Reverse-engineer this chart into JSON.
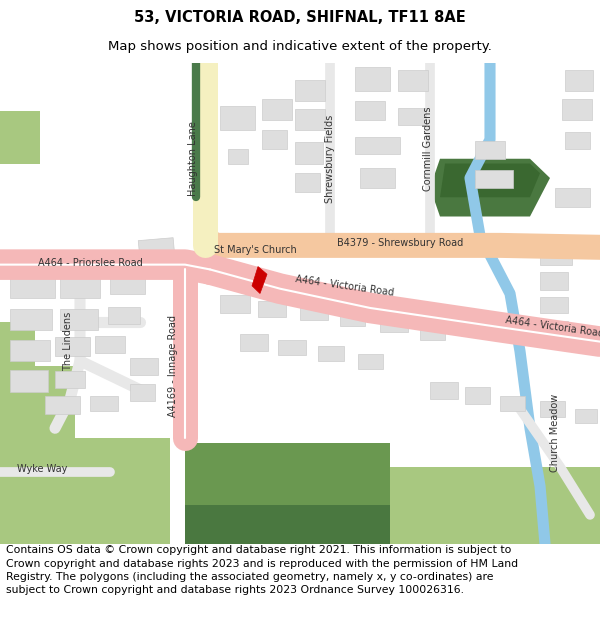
{
  "title_line1": "53, VICTORIA ROAD, SHIFNAL, TF11 8AE",
  "title_line2": "Map shows position and indicative extent of the property.",
  "footer_text": "Contains OS data © Crown copyright and database right 2021. This information is subject to Crown copyright and database rights 2023 and is reproduced with the permission of HM Land Registry. The polygons (including the associated geometry, namely x, y co-ordinates) are subject to Crown copyright and database rights 2023 Ordnance Survey 100026316.",
  "title_fontsize": 10.5,
  "subtitle_fontsize": 9.5,
  "footer_fontsize": 7.8,
  "background_color": "#ffffff",
  "title_color": "#000000",
  "footer_color": "#000000",
  "map_bg": "#ffffff",
  "road_pink": "#f5b8b8",
  "road_orange": "#f5c8a0",
  "road_yellow_outer": "#e8c840",
  "road_yellow_inner": "#f5f0c0",
  "road_green_stripe": "#4a7a4a",
  "road_white": "#ffffff",
  "road_minor": "#e8e8e8",
  "building_fill": "#dedede",
  "building_edge": "#cccccc",
  "green_light": "#a8c880",
  "green_dark": "#4a7840",
  "blue_water": "#90c8e8",
  "red_marker": "#cc0000",
  "label_color": "#444444"
}
